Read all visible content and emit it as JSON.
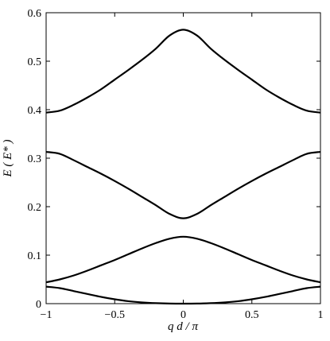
{
  "chart_data": {
    "type": "line",
    "title": "",
    "xlabel": "q d / π",
    "ylabel": "E ( E* )",
    "xlim": [
      -1,
      1
    ],
    "ylim": [
      0,
      0.6
    ],
    "x_ticks": [
      -1,
      -0.5,
      0,
      0.5,
      1
    ],
    "x_tick_labels": [
      "−1",
      "−0.5",
      "0",
      "0.5",
      "1"
    ],
    "y_ticks": [
      0,
      0.1,
      0.2,
      0.3,
      0.4,
      0.5,
      0.6
    ],
    "y_tick_labels": [
      "0",
      "0.1",
      "0.2",
      "0.3",
      "0.4",
      "0.5",
      "0.6"
    ],
    "grid": false,
    "line_color": "#000000",
    "x": [
      -1,
      -0.9,
      -0.8,
      -0.7,
      -0.6,
      -0.5,
      -0.4,
      -0.3,
      -0.2,
      -0.1,
      0,
      0.1,
      0.2,
      0.3,
      0.4,
      0.5,
      0.6,
      0.7,
      0.8,
      0.9,
      1
    ],
    "series": [
      {
        "values": [
          0.035,
          0.032,
          0.026,
          0.02,
          0.014,
          0.009,
          0.005,
          0.0025,
          0.001,
          0.0002,
          0,
          0.0002,
          0.001,
          0.0025,
          0.005,
          0.009,
          0.014,
          0.02,
          0.026,
          0.032,
          0.035
        ]
      },
      {
        "values": [
          0.044,
          0.05,
          0.058,
          0.068,
          0.079,
          0.09,
          0.102,
          0.114,
          0.125,
          0.134,
          0.138,
          0.134,
          0.125,
          0.114,
          0.102,
          0.09,
          0.079,
          0.068,
          0.058,
          0.05,
          0.044
        ]
      },
      {
        "values": [
          0.313,
          0.309,
          0.296,
          0.282,
          0.268,
          0.253,
          0.237,
          0.22,
          0.203,
          0.185,
          0.176,
          0.185,
          0.203,
          0.22,
          0.237,
          0.253,
          0.268,
          0.282,
          0.296,
          0.309,
          0.313
        ]
      },
      {
        "values": [
          0.394,
          0.398,
          0.41,
          0.425,
          0.442,
          0.462,
          0.482,
          0.503,
          0.526,
          0.553,
          0.565,
          0.553,
          0.526,
          0.503,
          0.482,
          0.462,
          0.442,
          0.425,
          0.41,
          0.398,
          0.394
        ]
      }
    ]
  }
}
